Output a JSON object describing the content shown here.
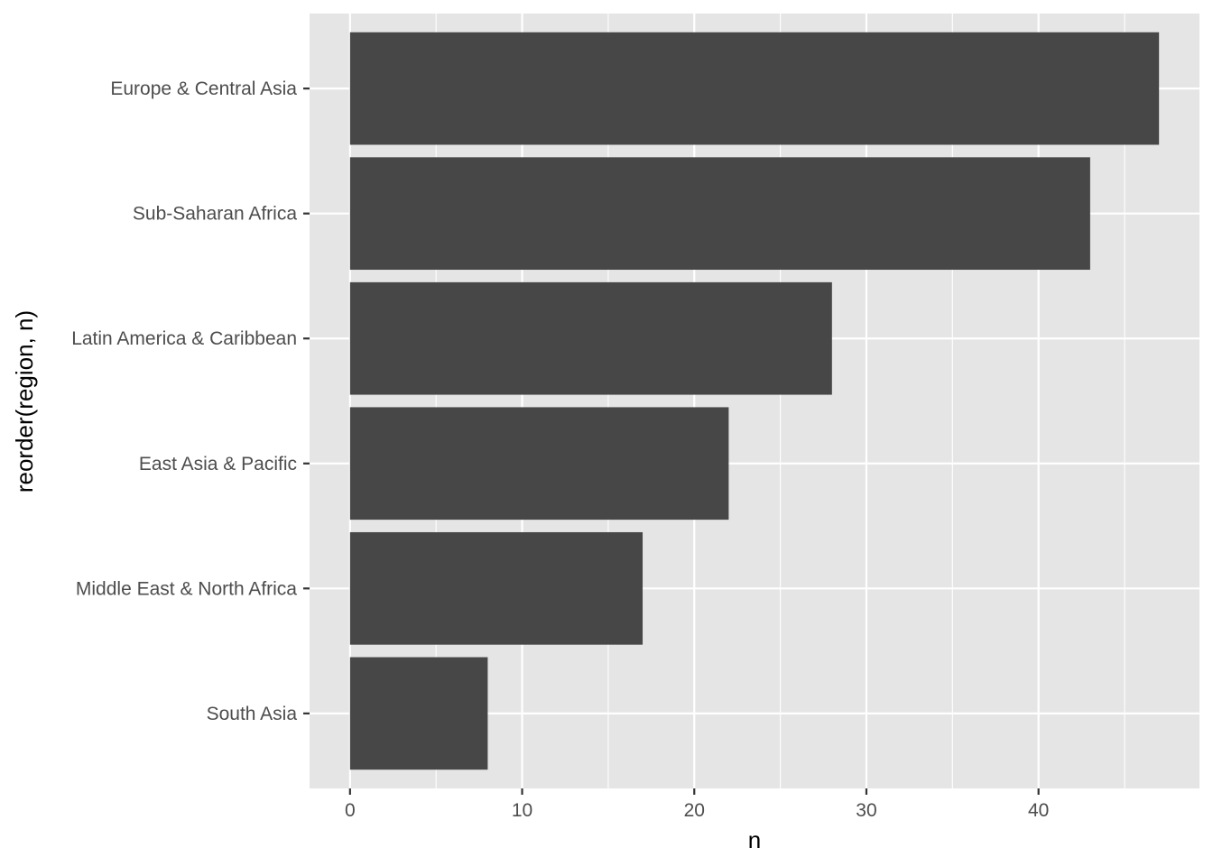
{
  "chart_data": {
    "type": "bar",
    "orientation": "horizontal",
    "categories": [
      "Europe & Central Asia",
      "Sub-Saharan Africa",
      "Latin America & Caribbean",
      "East Asia & Pacific",
      "Middle East & North Africa",
      "South Asia"
    ],
    "values": [
      47,
      43,
      28,
      22,
      17,
      8
    ],
    "title": "",
    "xlabel": "n",
    "ylabel": "reorder(region, n)",
    "xlim": [
      -2.35,
      49.35
    ],
    "x_ticks": [
      0,
      10,
      20,
      30,
      40
    ],
    "x_minor_ticks": [
      5,
      15,
      25,
      35,
      45
    ],
    "grid": true,
    "legend": "none",
    "colors": {
      "bar": "#474747",
      "panel": "#e5e5e5",
      "grid": "#ffffff"
    }
  }
}
